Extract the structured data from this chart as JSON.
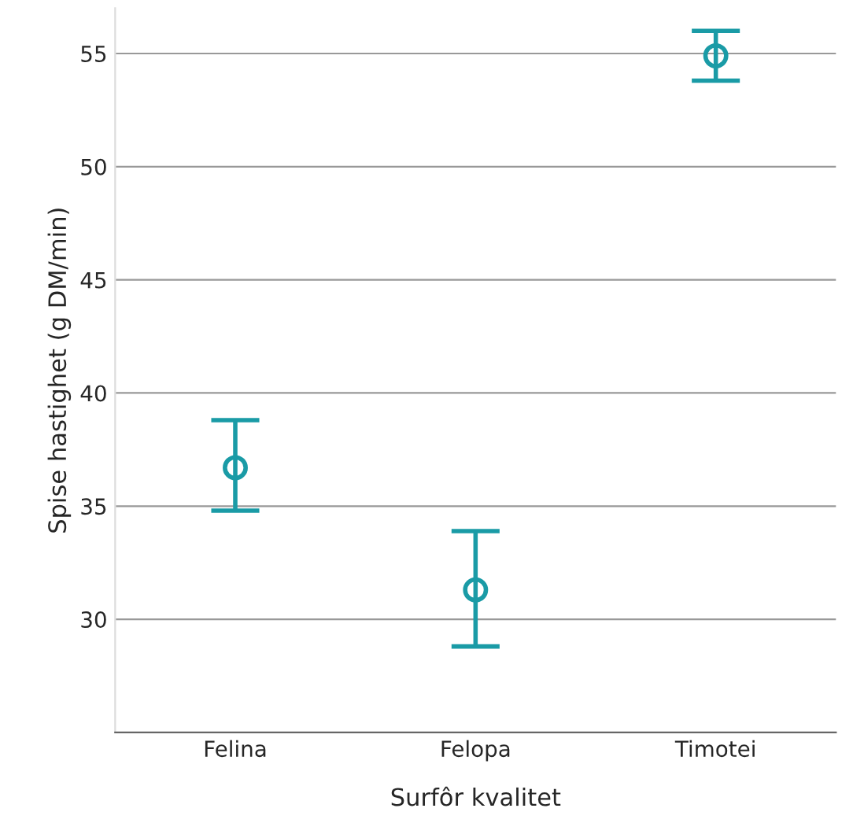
{
  "chart_data": {
    "type": "scatter",
    "xlabel": "Surfôr kvalitet",
    "ylabel": "Spise hastighet (g DM/min)",
    "categories": [
      "Felina",
      "Felopa",
      "Timotei"
    ],
    "series": [
      {
        "color": "#1a9ba6",
        "values": [
          36.7,
          31.3,
          54.9
        ],
        "errors": [
          [
            34.8,
            38.8
          ],
          [
            28.8,
            33.9
          ],
          [
            53.8,
            56.0
          ]
        ]
      }
    ],
    "ylim": [
      25,
      57
    ],
    "yticks": [
      30,
      35,
      40,
      45,
      50,
      55
    ],
    "grid": "y",
    "marker": "circle"
  }
}
